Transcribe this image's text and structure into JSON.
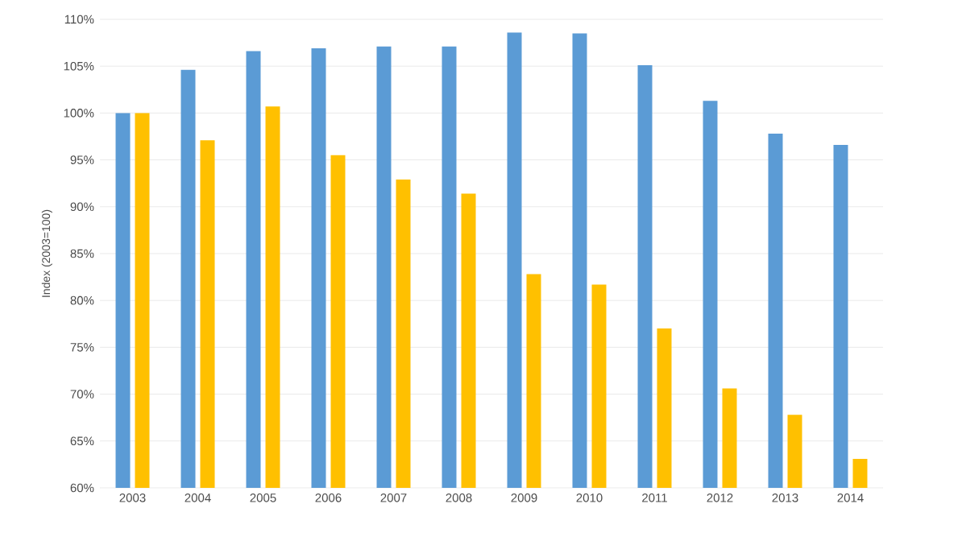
{
  "chart_data": {
    "type": "bar",
    "ylabel": "Index (2003=100)",
    "categories": [
      "2003",
      "2004",
      "2005",
      "2006",
      "2007",
      "2008",
      "2009",
      "2010",
      "2011",
      "2012",
      "2013",
      "2014"
    ],
    "series": [
      {
        "color": "#5b9bd5",
        "values": [
          100,
          104.6,
          106.6,
          106.9,
          107.1,
          107.1,
          108.6,
          108.5,
          105.1,
          101.3,
          97.8,
          96.6
        ]
      },
      {
        "color": "#ffc000",
        "values": [
          100,
          97.1,
          100.7,
          95.5,
          92.9,
          91.4,
          82.8,
          81.7,
          77.0,
          70.6,
          67.8,
          63.1
        ]
      }
    ],
    "ylim": [
      60,
      110
    ],
    "yticks": [
      {
        "value": 60,
        "label": "60%"
      },
      {
        "value": 65,
        "label": "65%"
      },
      {
        "value": 70,
        "label": "70%"
      },
      {
        "value": 75,
        "label": "75%"
      },
      {
        "value": 80,
        "label": "80%"
      },
      {
        "value": 85,
        "label": "85%"
      },
      {
        "value": 90,
        "label": "90%"
      },
      {
        "value": 95,
        "label": "95%"
      },
      {
        "value": 100,
        "label": "100%"
      },
      {
        "value": 105,
        "label": "105%"
      },
      {
        "value": 110,
        "label": "110%"
      }
    ],
    "grid": "y"
  }
}
